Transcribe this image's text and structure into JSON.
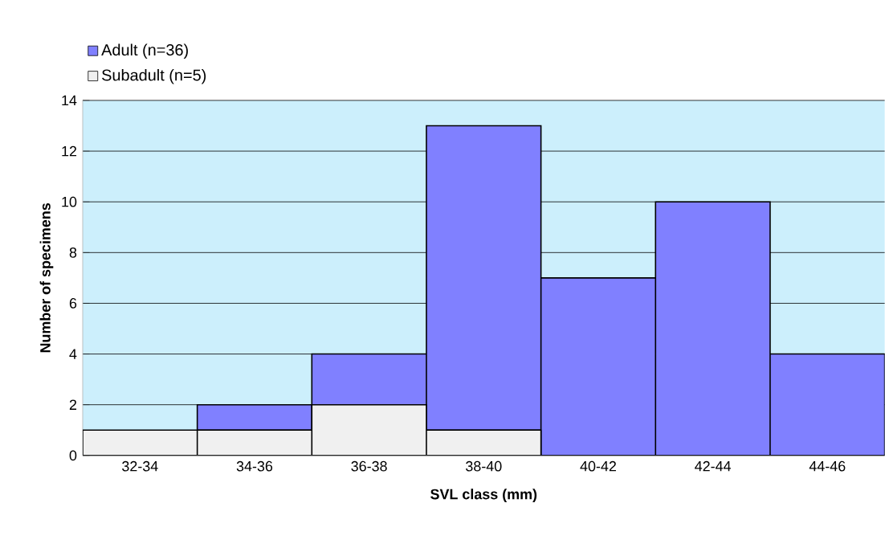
{
  "chart_data": {
    "type": "bar",
    "stacked": true,
    "xlabel": "SVL class (mm)",
    "ylabel": "Number of specimens",
    "categories": [
      "32-34",
      "34-36",
      "36-38",
      "38-40",
      "40-42",
      "42-44",
      "44-46"
    ],
    "series": [
      {
        "name": "Subadult (n=5)",
        "color": "#f0f0f0",
        "values": [
          1,
          1,
          2,
          1,
          0,
          0,
          0
        ]
      },
      {
        "name": "Adult (n=36)",
        "color": "#8080ff",
        "values": [
          0,
          1,
          2,
          12,
          7,
          10,
          4
        ]
      }
    ],
    "ylim": [
      0,
      14
    ],
    "yticks": [
      0,
      2,
      4,
      6,
      8,
      10,
      12,
      14
    ],
    "grid": "y",
    "legend": "top left"
  }
}
